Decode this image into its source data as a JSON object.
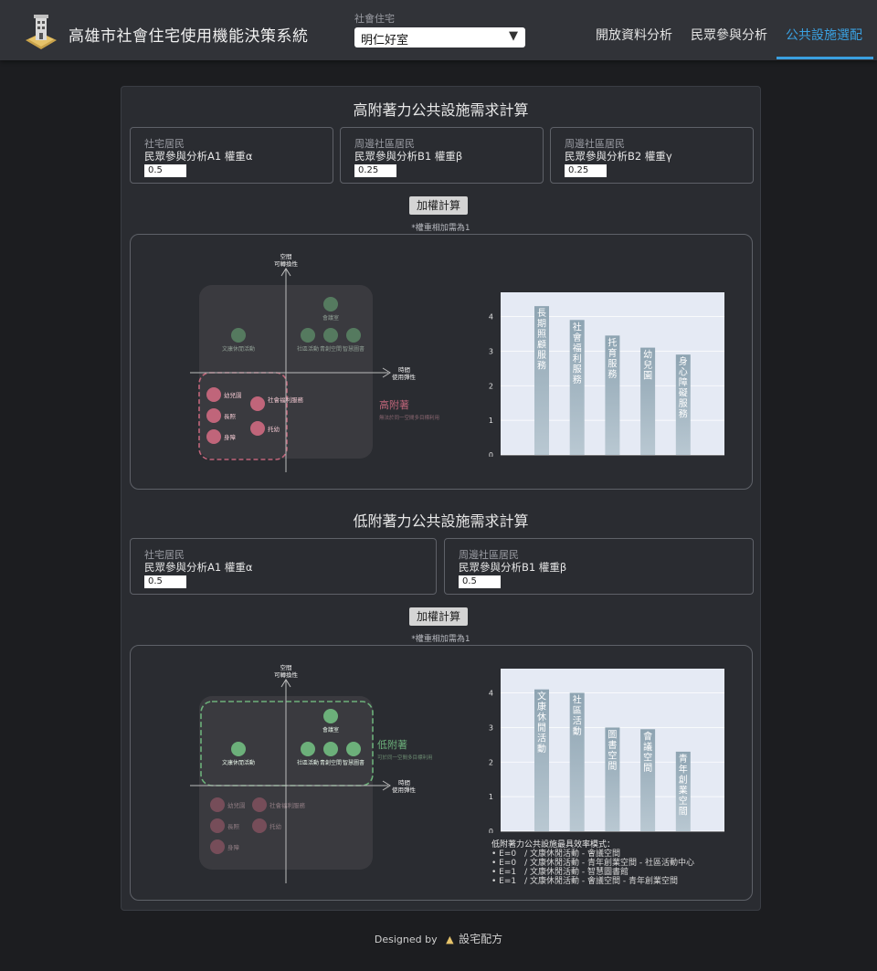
{
  "header": {
    "title": "高雄市社會住宅使用機能決策系統",
    "select_label": "社會住宅",
    "select_value": "明仁好室",
    "nav": [
      "開放資料分析",
      "民眾參與分析",
      "公共設施選配"
    ],
    "accent": "#3aa0e0"
  },
  "high": {
    "title": "高附著力公共設施需求計算",
    "boxes": [
      {
        "cat": "社宅居民",
        "label": "民眾參與分析A1 權重α",
        "value": "0.5"
      },
      {
        "cat": "周邊社區居民",
        "label": "民眾參與分析B1 權重β",
        "value": "0.25"
      },
      {
        "cat": "周邊社區居民",
        "label": "民眾參與分析B2 權重γ",
        "value": "0.25"
      }
    ],
    "button": "加權計算",
    "note": "*權重相加需為1",
    "quad": {
      "y_axis": [
        "空間",
        "可轉換性"
      ],
      "x_axis": [
        "時間",
        "使用彈性"
      ],
      "tag": "高附著",
      "tag_sub": "無法於同一空間多目標利用",
      "top": [
        "會議室",
        "文康休閒活動",
        "社區活動",
        "青創空間",
        "智慧圖書"
      ],
      "bottom": [
        "幼兒園",
        "社會福利服務",
        "長照",
        "托幼",
        "身障"
      ]
    },
    "chart_data": {
      "type": "bar",
      "categories": [
        "長期照顧服務",
        "社會福利服務",
        "托育服務",
        "幼兒園",
        "身心障礙服務"
      ],
      "values": [
        4.3,
        3.9,
        3.45,
        3.1,
        2.9
      ],
      "yticks": [
        0,
        1,
        2,
        3,
        4
      ],
      "ylim": [
        0,
        4.7
      ]
    }
  },
  "low": {
    "title": "低附著力公共設施需求計算",
    "boxes": [
      {
        "cat": "社宅居民",
        "label": "民眾參與分析A1 權重α",
        "value": "0.5"
      },
      {
        "cat": "周邊社區居民",
        "label": "民眾參與分析B1 權重β",
        "value": "0.5"
      }
    ],
    "button": "加權計算",
    "note": "*權重相加需為1",
    "quad": {
      "y_axis": [
        "空間",
        "可轉換性"
      ],
      "x_axis": [
        "時間",
        "使用彈性"
      ],
      "tag": "低附著",
      "tag_sub": "可於同一空間多目標利用",
      "top": [
        "會議室",
        "文康休閒活動",
        "社區活動",
        "青創空間",
        "智慧圖書"
      ],
      "bottom": [
        "幼兒園",
        "社會福利服務",
        "長照",
        "托幼",
        "身障"
      ]
    },
    "chart_data": {
      "type": "bar",
      "categories": [
        "文康休閒活動",
        "社區活動",
        "圖書空間",
        "會議空間",
        "青年創業空間"
      ],
      "values": [
        4.1,
        4.0,
        3.0,
        2.95,
        2.3
      ],
      "yticks": [
        0,
        1,
        2,
        3,
        4
      ],
      "ylim": [
        0,
        4.7
      ]
    },
    "legend_title": "低附著力公共設施最具效率模式：",
    "legend_items": [
      "E=0　/ 文康休閒活動 - 會議空間",
      "E=0　/ 文康休閒活動 - 青年創業空間 - 社區活動中心",
      "E=1　/ 文康休閒活動 - 智慧圖書館",
      "E=1　/ 文康休閒活動 - 會議空間 - 青年創業空間"
    ]
  },
  "footer": {
    "prefix": "Designed by",
    "brand": "設宅配方"
  }
}
